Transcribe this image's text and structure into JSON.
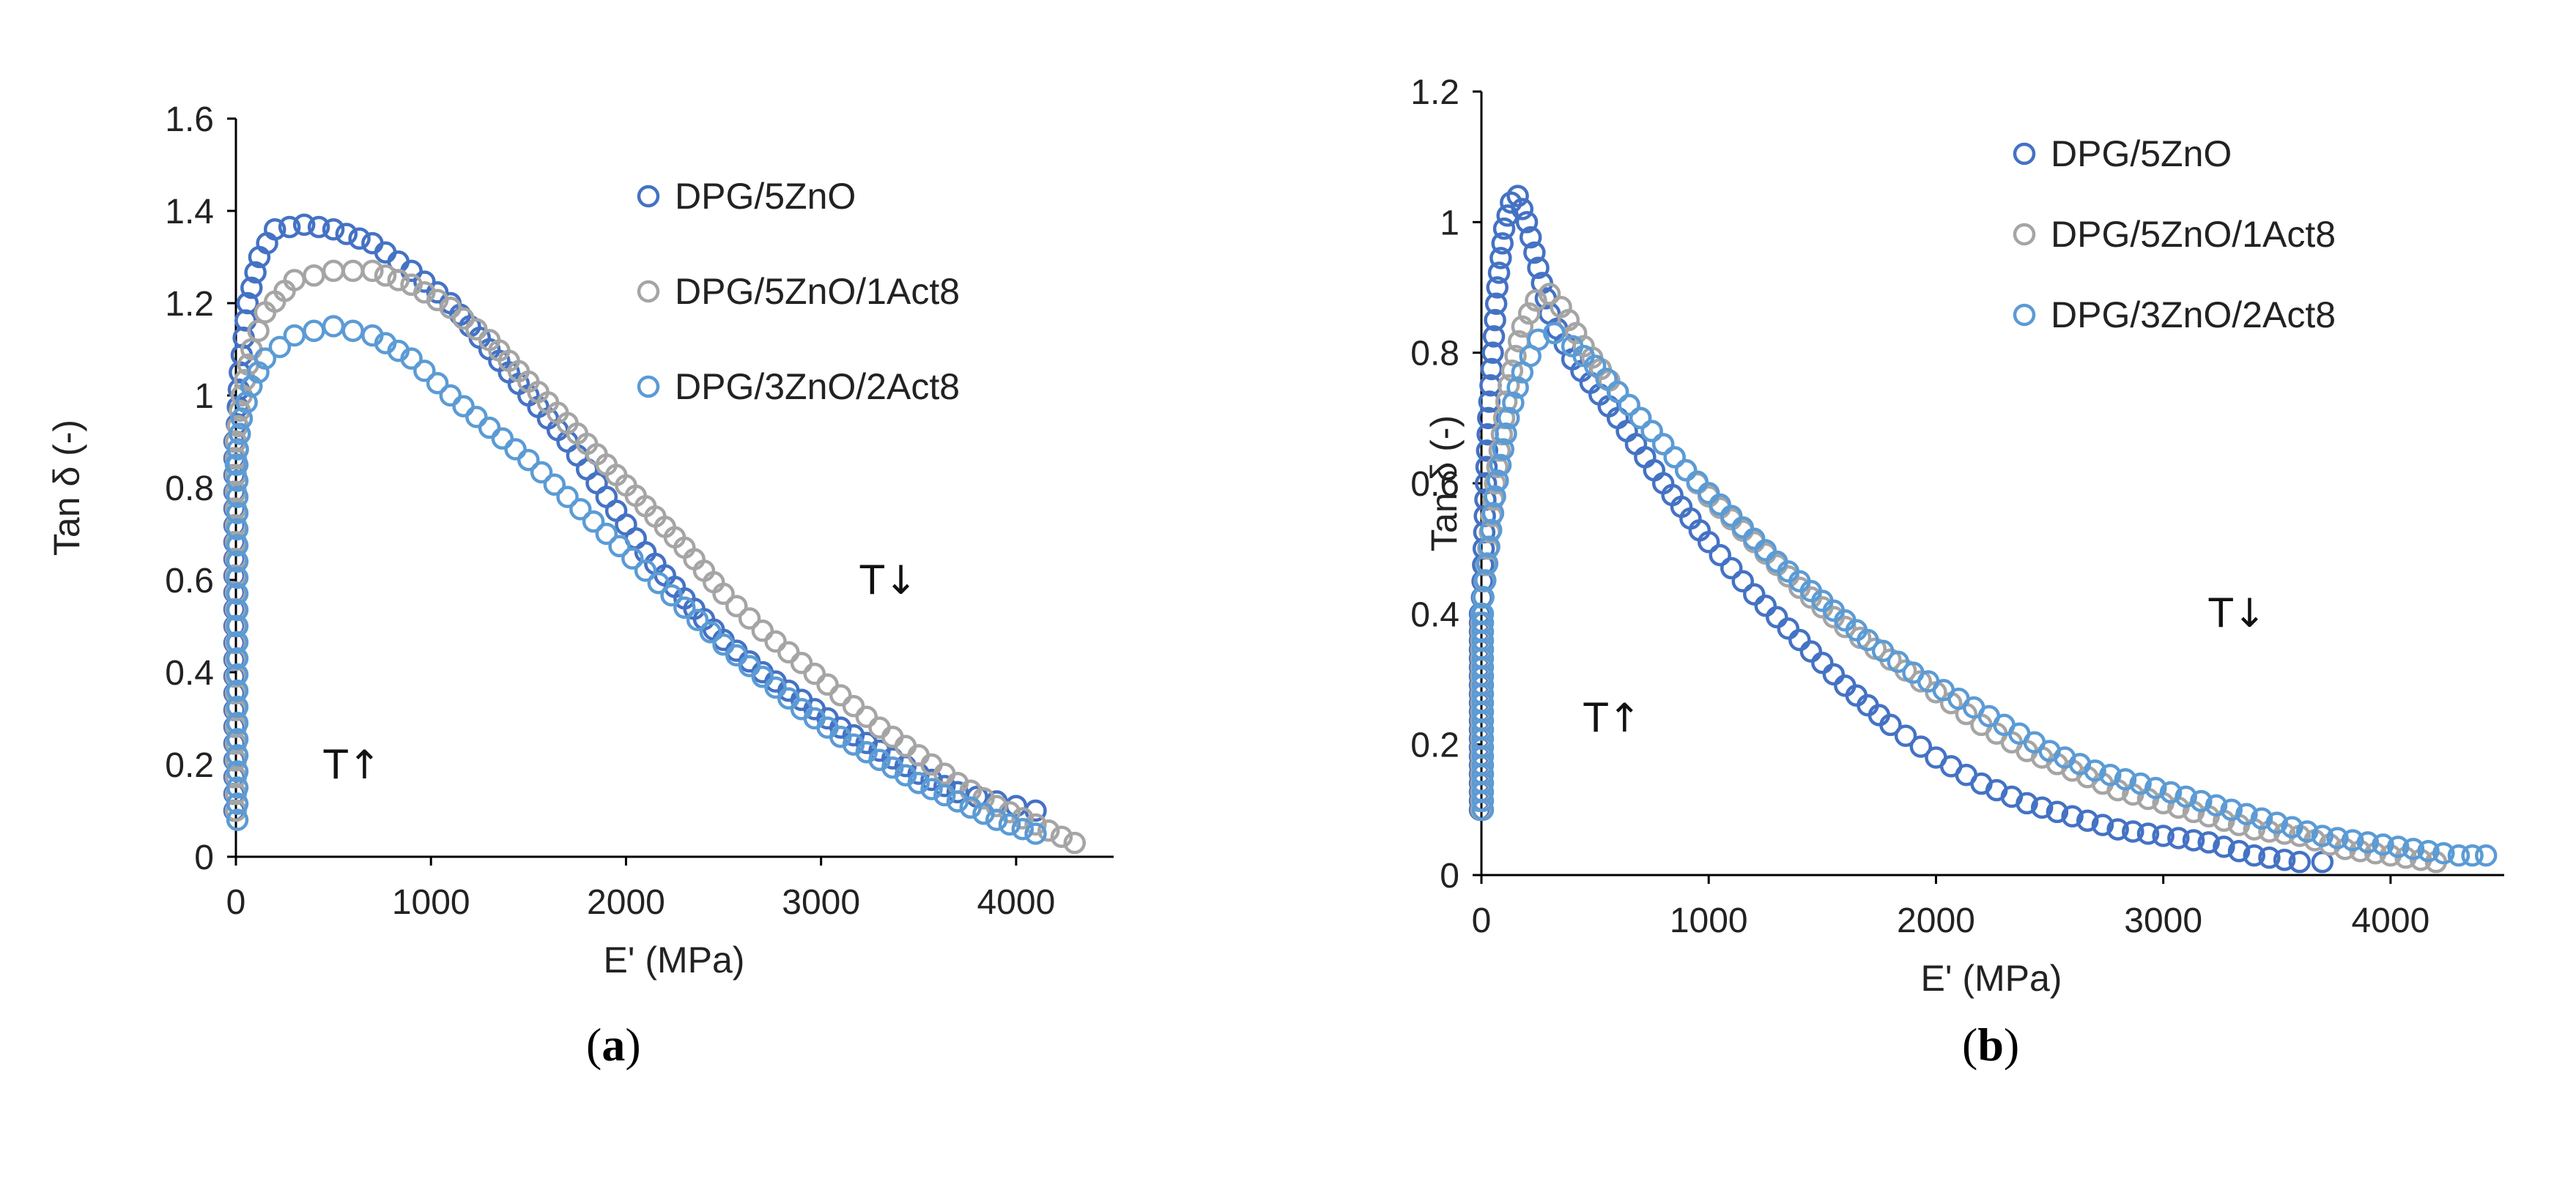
{
  "figure": {
    "panel_labels": [
      {
        "open": "(",
        "letter": "a",
        "close": ")"
      },
      {
        "open": "(",
        "letter": "b",
        "close": ")"
      }
    ]
  },
  "colors": {
    "series_1": "#4472c4",
    "series_2": "#a5a5a5",
    "series_3": "#5b9bd5",
    "axis": "#000000"
  },
  "chart_data": [
    {
      "type": "scatter",
      "title": "",
      "xlabel": "E' (MPa)",
      "ylabel": "Tan δ (-)",
      "xlim": [
        0,
        4500
      ],
      "ylim": [
        0,
        1.6
      ],
      "xticks": [
        "0",
        "1000",
        "2000",
        "3000",
        "4000"
      ],
      "yticks": [
        "0",
        "0.2",
        "0.4",
        "0.6",
        "0.8",
        "1",
        "1.2",
        "1.4",
        "1.6"
      ],
      "grid": false,
      "legend": "top-right",
      "annotations": [
        {
          "text": "T↑",
          "x": 450,
          "y": 0.17
        },
        {
          "text": "T↓",
          "x": 3200,
          "y": 0.57
        }
      ],
      "series": [
        {
          "name": "DPG/5ZnO",
          "rise_x": 0,
          "rise_y": [
            0.1,
            0.9
          ],
          "points": [
            [
              0,
              0.9
            ],
            [
              20,
              1.05
            ],
            [
              60,
              1.2
            ],
            [
              120,
              1.3
            ],
            [
              200,
              1.36
            ],
            [
              350,
              1.37
            ],
            [
              500,
              1.36
            ],
            [
              700,
              1.33
            ],
            [
              900,
              1.27
            ],
            [
              1100,
              1.2
            ],
            [
              1300,
              1.1
            ],
            [
              1500,
              1.0
            ],
            [
              1700,
              0.9
            ],
            [
              1900,
              0.78
            ],
            [
              2100,
              0.66
            ],
            [
              2300,
              0.56
            ],
            [
              2500,
              0.47
            ],
            [
              2700,
              0.4
            ],
            [
              2900,
              0.34
            ],
            [
              3100,
              0.28
            ],
            [
              3300,
              0.23
            ],
            [
              3500,
              0.18
            ],
            [
              3700,
              0.14
            ],
            [
              3900,
              0.12
            ],
            [
              4100,
              0.1
            ]
          ]
        },
        {
          "name": "DPG/5ZnO/1Act8",
          "rise_x": 0,
          "rise_y": [
            0.1,
            0.9
          ],
          "points": [
            [
              0,
              0.9
            ],
            [
              30,
              1.0
            ],
            [
              80,
              1.1
            ],
            [
              150,
              1.18
            ],
            [
              300,
              1.25
            ],
            [
              500,
              1.27
            ],
            [
              700,
              1.27
            ],
            [
              900,
              1.24
            ],
            [
              1100,
              1.19
            ],
            [
              1300,
              1.12
            ],
            [
              1500,
              1.03
            ],
            [
              1700,
              0.94
            ],
            [
              1900,
              0.85
            ],
            [
              2100,
              0.76
            ],
            [
              2300,
              0.67
            ],
            [
              2500,
              0.57
            ],
            [
              2700,
              0.49
            ],
            [
              2900,
              0.42
            ],
            [
              3100,
              0.35
            ],
            [
              3300,
              0.28
            ],
            [
              3500,
              0.22
            ],
            [
              3700,
              0.16
            ],
            [
              3900,
              0.11
            ],
            [
              4100,
              0.07
            ],
            [
              4300,
              0.03
            ]
          ]
        },
        {
          "name": "DPG/3ZnO/2Act8",
          "rise_x": 0,
          "rise_y": [
            0.08,
            0.85
          ],
          "points": [
            [
              0,
              0.85
            ],
            [
              30,
              0.95
            ],
            [
              80,
              1.02
            ],
            [
              150,
              1.08
            ],
            [
              300,
              1.13
            ],
            [
              500,
              1.15
            ],
            [
              700,
              1.13
            ],
            [
              900,
              1.08
            ],
            [
              1100,
              1.0
            ],
            [
              1300,
              0.93
            ],
            [
              1500,
              0.86
            ],
            [
              1700,
              0.78
            ],
            [
              1900,
              0.7
            ],
            [
              2100,
              0.62
            ],
            [
              2300,
              0.54
            ],
            [
              2500,
              0.46
            ],
            [
              2700,
              0.39
            ],
            [
              2900,
              0.32
            ],
            [
              3100,
              0.26
            ],
            [
              3300,
              0.21
            ],
            [
              3500,
              0.16
            ],
            [
              3700,
              0.12
            ],
            [
              3900,
              0.08
            ],
            [
              4100,
              0.05
            ]
          ]
        }
      ]
    },
    {
      "type": "scatter",
      "title": "",
      "xlabel": "E' (MPa)",
      "ylabel": "Tan δ (-)",
      "xlim": [
        0,
        4500
      ],
      "ylim": [
        0,
        1.2
      ],
      "xticks": [
        "0",
        "1000",
        "2000",
        "3000",
        "4000"
      ],
      "yticks": [
        "0",
        "0.2",
        "0.4",
        "0.6",
        "0.8",
        "1",
        "1.2"
      ],
      "grid": false,
      "legend": "top-right",
      "annotations": [
        {
          "text": "T↑",
          "x": 450,
          "y": 0.22
        },
        {
          "text": "T↓",
          "x": 3200,
          "y": 0.38
        }
      ],
      "series": [
        {
          "name": "DPG/5ZnO",
          "rise_x": 0,
          "rise_y": [
            0.1,
            0.4
          ],
          "points": [
            [
              0,
              0.4
            ],
            [
              30,
              0.7
            ],
            [
              70,
              0.9
            ],
            [
              100,
              0.99
            ],
            [
              130,
              1.03
            ],
            [
              160,
              1.04
            ],
            [
              200,
              1.0
            ],
            [
              250,
              0.93
            ],
            [
              300,
              0.86
            ],
            [
              400,
              0.79
            ],
            [
              600,
              0.7
            ],
            [
              800,
              0.6
            ],
            [
              1000,
              0.51
            ],
            [
              1200,
              0.43
            ],
            [
              1400,
              0.36
            ],
            [
              1600,
              0.29
            ],
            [
              1800,
              0.23
            ],
            [
              2000,
              0.18
            ],
            [
              2200,
              0.14
            ],
            [
              2400,
              0.11
            ],
            [
              2600,
              0.09
            ],
            [
              2800,
              0.07
            ],
            [
              3000,
              0.06
            ],
            [
              3200,
              0.05
            ],
            [
              3400,
              0.03
            ],
            [
              3600,
              0.02
            ],
            [
              3700,
              0.02
            ]
          ]
        },
        {
          "name": "DPG/5ZnO/1Act8",
          "rise_x": 0,
          "rise_y": [
            0.1,
            0.4
          ],
          "points": [
            [
              0,
              0.4
            ],
            [
              60,
              0.6
            ],
            [
              120,
              0.75
            ],
            [
              180,
              0.84
            ],
            [
              240,
              0.88
            ],
            [
              300,
              0.89
            ],
            [
              350,
              0.87
            ],
            [
              450,
              0.81
            ],
            [
              600,
              0.74
            ],
            [
              800,
              0.66
            ],
            [
              1000,
              0.58
            ],
            [
              1200,
              0.51
            ],
            [
              1400,
              0.44
            ],
            [
              1600,
              0.38
            ],
            [
              1800,
              0.33
            ],
            [
              2000,
              0.28
            ],
            [
              2200,
              0.23
            ],
            [
              2400,
              0.19
            ],
            [
              2600,
              0.16
            ],
            [
              2800,
              0.13
            ],
            [
              3000,
              0.11
            ],
            [
              3200,
              0.09
            ],
            [
              3400,
              0.07
            ],
            [
              3600,
              0.06
            ],
            [
              3800,
              0.04
            ],
            [
              4000,
              0.03
            ],
            [
              4200,
              0.02
            ]
          ]
        },
        {
          "name": "DPG/3ZnO/2Act8",
          "rise_x": 0,
          "rise_y": [
            0.1,
            0.4
          ],
          "points": [
            [
              0,
              0.4
            ],
            [
              60,
              0.58
            ],
            [
              120,
              0.7
            ],
            [
              180,
              0.77
            ],
            [
              250,
              0.82
            ],
            [
              320,
              0.83
            ],
            [
              400,
              0.81
            ],
            [
              500,
              0.78
            ],
            [
              700,
              0.7
            ],
            [
              900,
              0.62
            ],
            [
              1100,
              0.55
            ],
            [
              1300,
              0.48
            ],
            [
              1500,
              0.42
            ],
            [
              1700,
              0.36
            ],
            [
              1900,
              0.31
            ],
            [
              2100,
              0.27
            ],
            [
              2300,
              0.23
            ],
            [
              2500,
              0.19
            ],
            [
              2700,
              0.16
            ],
            [
              2900,
              0.14
            ],
            [
              3100,
              0.12
            ],
            [
              3300,
              0.1
            ],
            [
              3500,
              0.08
            ],
            [
              3700,
              0.06
            ],
            [
              3900,
              0.05
            ],
            [
              4100,
              0.04
            ],
            [
              4300,
              0.03
            ],
            [
              4420,
              0.03
            ]
          ]
        }
      ]
    }
  ]
}
